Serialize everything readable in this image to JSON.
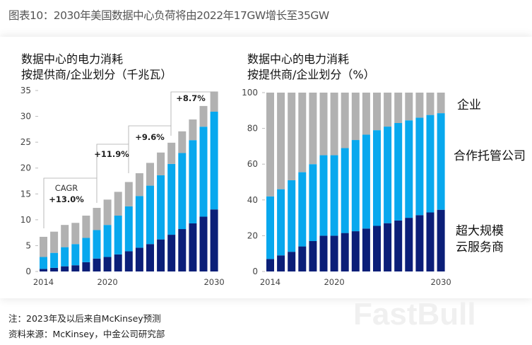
{
  "title": "图表10：2030年美国数据中心负荷将由2022年17GW增长至35GW",
  "notes": {
    "note": "注：2023年及以后来自McKinsey预测",
    "source": "资料来源：McKinsey，中金公司研究部"
  },
  "watermark": "FastBull",
  "colors": {
    "hyperscale": "#0b1f78",
    "colocation": "#08a8ee",
    "enterprise": "#b1b1b1"
  },
  "chart_data": [
    {
      "type": "bar",
      "stacked": true,
      "title": [
        "数据中心的电力消耗",
        "按提供商/企业划分（千兆瓦）"
      ],
      "categories": [
        2014,
        2015,
        2016,
        2017,
        2018,
        2019,
        2020,
        2021,
        2022,
        2023,
        2024,
        2025,
        2026,
        2027,
        2028,
        2029,
        2030
      ],
      "xtick_labels": [
        "2014",
        "2020",
        "2030"
      ],
      "ylim": [
        0,
        35
      ],
      "yticks": [
        "0",
        "5",
        "10",
        "15",
        "20",
        "25",
        "30",
        "35"
      ],
      "series": [
        {
          "key": "hyperscale",
          "values": [
            0.5,
            0.7,
            1.0,
            1.2,
            1.8,
            2.5,
            2.8,
            3.3,
            3.9,
            4.6,
            5.3,
            6.2,
            7.1,
            8.2,
            9.3,
            10.6,
            12.0
          ]
        },
        {
          "key": "colocation",
          "values": [
            2.3,
            2.9,
            3.7,
            4.1,
            4.7,
            5.5,
            6.2,
            7.5,
            8.7,
            10.0,
            11.3,
            12.4,
            13.7,
            14.7,
            16.1,
            17.4,
            18.9
          ]
        },
        {
          "key": "enterprise",
          "values": [
            3.9,
            4.1,
            4.3,
            4.1,
            4.3,
            4.3,
            4.9,
            4.6,
            4.7,
            4.4,
            4.4,
            4.4,
            4.1,
            4.2,
            4.0,
            4.0,
            3.9
          ]
        }
      ],
      "annotations": [
        {
          "label": "CAGR",
          "value": "+13.0%"
        },
        {
          "value": "+11.9%"
        },
        {
          "value": "+9.6%"
        },
        {
          "value": "+8.7%"
        }
      ]
    },
    {
      "type": "bar",
      "stacked": true,
      "title": [
        "数据中心的电力消耗",
        "按提供商/企业划分（%）"
      ],
      "categories": [
        2014,
        2015,
        2016,
        2017,
        2018,
        2019,
        2020,
        2021,
        2022,
        2023,
        2024,
        2025,
        2026,
        2027,
        2028,
        2029,
        2030
      ],
      "xtick_labels": [
        "2014",
        "2020",
        "2030"
      ],
      "ylim": [
        0,
        100
      ],
      "yticks": [
        "0",
        "20",
        "40",
        "60",
        "80",
        "100"
      ],
      "series": [
        {
          "key": "hyperscale",
          "name": "超大规模云服务商",
          "values": [
            7,
            9,
            11,
            14,
            17,
            20,
            20,
            21.5,
            22.5,
            24,
            25.5,
            27,
            28.5,
            30,
            31.5,
            33,
            34.5
          ]
        },
        {
          "key": "colocation",
          "name": "合作托管公司",
          "values": [
            35,
            37,
            40,
            41.5,
            43,
            45,
            45,
            47.5,
            51,
            52.5,
            53.5,
            54,
            54.5,
            54.5,
            54.5,
            54.5,
            54
          ]
        },
        {
          "key": "enterprise",
          "name": "企业",
          "values": [
            58,
            54,
            49,
            44.5,
            40,
            35,
            35,
            31,
            26.5,
            23.5,
            21,
            19,
            17,
            15.5,
            14,
            12.5,
            11.5
          ]
        }
      ],
      "legend": [
        "企业",
        "合作托管公司",
        "超大规模",
        "云服务商"
      ]
    }
  ]
}
